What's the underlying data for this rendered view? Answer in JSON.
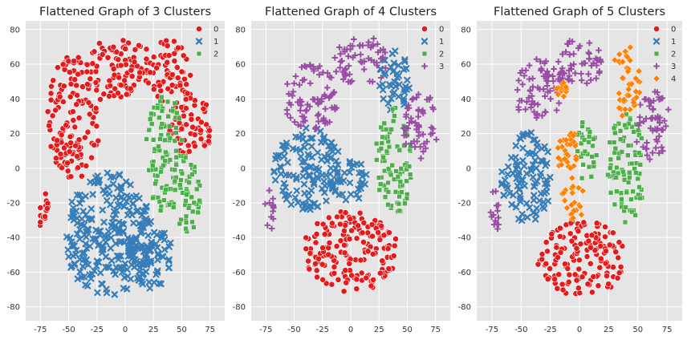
{
  "chart_data": [
    {
      "type": "scatter",
      "title": "Flattened Graph of 3 Clusters",
      "xlabel": "",
      "ylabel": "",
      "xlim": [
        -88,
        88
      ],
      "ylim": [
        -88,
        85
      ],
      "xticks": [
        -75,
        -50,
        -25,
        0,
        25,
        50,
        75
      ],
      "yticks": [
        -80,
        -60,
        -40,
        -20,
        0,
        20,
        40,
        60,
        80
      ],
      "grid": true,
      "legend_position": "top-right",
      "legend": [
        "0",
        "1",
        "2"
      ],
      "series": [
        {
          "name": "0",
          "color": "#e41a1c",
          "marker": "circle",
          "regions": [
            {
              "cx": -45,
              "cy": 30,
              "rx": 24,
              "ry": 36
            },
            {
              "cx": -5,
              "cy": 58,
              "rx": 30,
              "ry": 18
            },
            {
              "cx": 40,
              "cy": 55,
              "rx": 18,
              "ry": 20
            },
            {
              "cx": 58,
              "cy": 25,
              "rx": 20,
              "ry": 20
            },
            {
              "cx": -72,
              "cy": -25,
              "rx": 4,
              "ry": 14
            }
          ]
        },
        {
          "name": "1",
          "color": "#377eb8",
          "marker": "x",
          "regions": [
            {
              "cx": -15,
              "cy": -38,
              "rx": 40,
              "ry": 36
            },
            {
              "cx": 20,
              "cy": -50,
              "rx": 22,
              "ry": 20
            }
          ]
        },
        {
          "name": "2",
          "color": "#4daf4a",
          "marker": "square",
          "regions": [
            {
              "cx": 35,
              "cy": 8,
              "rx": 18,
              "ry": 34
            },
            {
              "cx": 55,
              "cy": -15,
              "rx": 12,
              "ry": 22
            }
          ]
        }
      ]
    },
    {
      "type": "scatter",
      "title": "Flattened Graph of 4 Clusters",
      "xlabel": "",
      "ylabel": "",
      "xlim": [
        -88,
        88
      ],
      "ylim": [
        -88,
        85
      ],
      "xticks": [
        -75,
        -50,
        -25,
        0,
        25,
        50,
        75
      ],
      "yticks": [
        -80,
        -60,
        -40,
        -20,
        0,
        20,
        40,
        60,
        80
      ],
      "grid": true,
      "legend_position": "top-right",
      "legend": [
        "0",
        "1",
        "2",
        "3"
      ],
      "series": [
        {
          "name": "0",
          "color": "#e41a1c",
          "marker": "circle",
          "regions": [
            {
              "cx": 0,
              "cy": -48,
              "rx": 42,
              "ry": 24
            }
          ]
        },
        {
          "name": "1",
          "color": "#377eb8",
          "marker": "x",
          "regions": [
            {
              "cx": -38,
              "cy": 0,
              "rx": 30,
              "ry": 24
            },
            {
              "cx": 38,
              "cy": 50,
              "rx": 14,
              "ry": 18
            },
            {
              "cx": 0,
              "cy": -8,
              "rx": 18,
              "ry": 12
            }
          ]
        },
        {
          "name": "2",
          "color": "#4daf4a",
          "marker": "square",
          "regions": [
            {
              "cx": 38,
              "cy": 5,
              "rx": 16,
              "ry": 34
            }
          ]
        },
        {
          "name": "3",
          "color": "#984ea3",
          "marker": "plus",
          "regions": [
            {
              "cx": -35,
              "cy": 40,
              "rx": 24,
              "ry": 20
            },
            {
              "cx": 10,
              "cy": 62,
              "rx": 26,
              "ry": 14
            },
            {
              "cx": 62,
              "cy": 25,
              "rx": 16,
              "ry": 20
            },
            {
              "cx": -72,
              "cy": -25,
              "rx": 4,
              "ry": 14
            }
          ]
        }
      ]
    },
    {
      "type": "scatter",
      "title": "Flattened Graph of 5 Clusters",
      "xlabel": "",
      "ylabel": "",
      "xlim": [
        -88,
        88
      ],
      "ylim": [
        -88,
        85
      ],
      "xticks": [
        -75,
        -50,
        -25,
        0,
        25,
        50,
        75
      ],
      "yticks": [
        -80,
        -60,
        -40,
        -20,
        0,
        20,
        40,
        60,
        80
      ],
      "grid": true,
      "legend_position": "top-right",
      "legend": [
        "0",
        "1",
        "2",
        "3",
        "4"
      ],
      "series": [
        {
          "name": "0",
          "color": "#e41a1c",
          "marker": "circle",
          "regions": [
            {
              "cx": 2,
              "cy": -52,
              "rx": 38,
              "ry": 22
            }
          ]
        },
        {
          "name": "1",
          "color": "#377eb8",
          "marker": "x",
          "regions": [
            {
              "cx": -45,
              "cy": -5,
              "rx": 22,
              "ry": 26
            }
          ]
        },
        {
          "name": "2",
          "color": "#4daf4a",
          "marker": "square",
          "regions": [
            {
              "cx": 40,
              "cy": 0,
              "rx": 16,
              "ry": 32
            },
            {
              "cx": 5,
              "cy": 10,
              "rx": 10,
              "ry": 18
            }
          ]
        },
        {
          "name": "3",
          "color": "#984ea3",
          "marker": "plus",
          "regions": [
            {
              "cx": -35,
              "cy": 45,
              "rx": 22,
              "ry": 18
            },
            {
              "cx": 0,
              "cy": 62,
              "rx": 22,
              "ry": 14
            },
            {
              "cx": 62,
              "cy": 25,
              "rx": 16,
              "ry": 20
            },
            {
              "cx": -72,
              "cy": -25,
              "rx": 4,
              "ry": 14
            }
          ]
        },
        {
          "name": "4",
          "color": "#ff7f00",
          "marker": "diamond",
          "regions": [
            {
              "cx": 40,
              "cy": 50,
              "rx": 12,
              "ry": 22
            },
            {
              "cx": -10,
              "cy": 5,
              "rx": 10,
              "ry": 20
            },
            {
              "cx": -5,
              "cy": -20,
              "rx": 12,
              "ry": 10
            },
            {
              "cx": -15,
              "cy": 45,
              "rx": 5,
              "ry": 5
            }
          ]
        }
      ]
    }
  ]
}
